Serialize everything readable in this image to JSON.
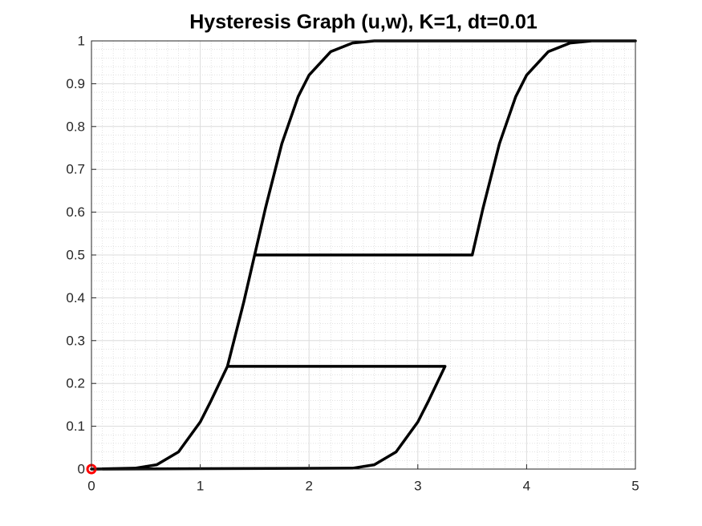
{
  "chart_data": {
    "type": "line",
    "title": "Hysteresis Graph (u,w), K=1, dt=0.01",
    "x": [
      0,
      2.4,
      2.6,
      2.8,
      3.0,
      3.1,
      3.25,
      1.25,
      1.4,
      1.5,
      3.5,
      3.6,
      3.75,
      3.9,
      4.0,
      4.2,
      4.4,
      4.6,
      5,
      2.6,
      2.4,
      2.2,
      2.0,
      1.9,
      1.75,
      1.6,
      1.5,
      1.4,
      1.25,
      1.1,
      1.0,
      0.8,
      0.6,
      0.4,
      0
    ],
    "series": [
      {
        "color": "#000000",
        "values": [
          0,
          0.002,
          0.01,
          0.04,
          0.11,
          0.16,
          0.24,
          0.24,
          0.39,
          0.5,
          0.5,
          0.61,
          0.76,
          0.87,
          0.92,
          0.975,
          0.995,
          1,
          1,
          1,
          0.995,
          0.975,
          0.92,
          0.87,
          0.76,
          0.61,
          0.5,
          0.39,
          0.24,
          0.16,
          0.11,
          0.04,
          0.01,
          0.002,
          0
        ]
      }
    ],
    "marker": {
      "x": 0,
      "y": 0,
      "color": "#ff0000"
    },
    "xlim": [
      0,
      5
    ],
    "xticks": [
      0,
      1,
      2,
      3,
      4,
      5
    ],
    "ylim": [
      0,
      1
    ],
    "yticks": [
      0,
      0.1,
      0.2,
      0.3,
      0.4,
      0.5,
      0.6,
      0.7,
      0.8,
      0.9,
      1
    ],
    "grid": true,
    "minor_grid": true
  }
}
